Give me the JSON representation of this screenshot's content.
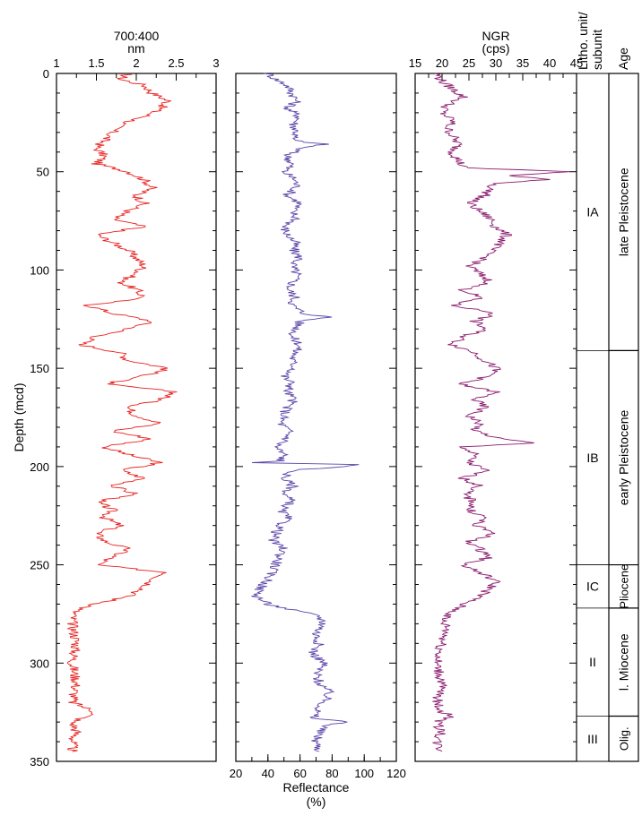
{
  "chart_data": {
    "type": "line",
    "y_axis": {
      "label": "Depth (mcd)",
      "range": [
        0,
        350
      ],
      "ticks": [
        "0",
        "50",
        "100",
        "150",
        "200",
        "250",
        "300",
        "350"
      ]
    },
    "panels": [
      {
        "id": "ratio",
        "axis_position": "top",
        "xlabel_line1": "700:400",
        "xlabel_line2": "nm",
        "xlim": [
          1,
          3
        ],
        "ticks": [
          "1",
          "1.5",
          "2",
          "2.5",
          "3"
        ],
        "color": "#e8211f",
        "series": [
          {
            "depth": [
              0,
              3,
              6,
              10,
              14,
              18,
              22,
              26,
              30,
              34,
              38,
              42,
              46,
              50,
              54,
              58,
              62,
              66,
              70,
              74,
              78,
              82,
              86,
              90,
              94,
              98,
              102,
              106,
              110,
              114,
              118,
              122,
              126,
              130,
              134,
              138,
              142,
              146,
              150,
              154,
              158,
              162,
              166,
              170,
              174,
              178,
              182,
              186,
              190,
              194,
              198,
              202,
              206,
              210,
              214,
              218,
              222,
              226,
              230,
              234,
              238,
              242,
              246,
              250,
              254,
              258,
              262,
              266,
              270,
              273,
              276,
              280,
              290,
              300,
              310,
              320,
              325,
              330,
              335,
              340,
              345
            ],
            "values": [
              1.9,
              1.8,
              2.1,
              2.2,
              2.4,
              2.3,
              2.1,
              1.8,
              1.7,
              1.6,
              1.5,
              1.6,
              1.5,
              1.9,
              2.1,
              2.2,
              2.0,
              2.1,
              1.9,
              1.7,
              2.1,
              1.5,
              1.7,
              1.9,
              2.0,
              2.1,
              2.0,
              1.8,
              2.0,
              2.1,
              1.4,
              1.7,
              2.2,
              1.9,
              1.5,
              1.3,
              1.8,
              1.9,
              2.4,
              2.1,
              1.6,
              2.5,
              2.3,
              1.9,
              2.0,
              2.3,
              1.7,
              2.2,
              1.6,
              1.9,
              2.3,
              1.8,
              2.1,
              1.7,
              2.0,
              1.5,
              1.7,
              1.6,
              1.8,
              1.5,
              1.6,
              1.9,
              1.7,
              1.5,
              2.4,
              2.2,
              2.1,
              1.9,
              1.5,
              1.25,
              1.2,
              1.2,
              1.25,
              1.2,
              1.25,
              1.2,
              1.5,
              1.2,
              1.25,
              1.2,
              1.2
            ]
          }
        ]
      },
      {
        "id": "reflectance",
        "axis_position": "bottom",
        "xlabel_line1": "Reflectance",
        "xlabel_line2": "(%)",
        "xlim": [
          20,
          120
        ],
        "ticks": [
          "20",
          "40",
          "60",
          "80",
          "100",
          "120"
        ],
        "color": "#5a44a8",
        "series": [
          {
            "depth": [
              0,
              3,
              6,
              10,
              14,
              18,
              22,
              26,
              30,
              34,
              36,
              38,
              42,
              46,
              50,
              54,
              58,
              62,
              66,
              70,
              74,
              78,
              82,
              86,
              90,
              94,
              98,
              102,
              106,
              110,
              114,
              118,
              122,
              124,
              126,
              130,
              134,
              138,
              142,
              146,
              150,
              154,
              158,
              162,
              166,
              170,
              174,
              178,
              182,
              186,
              190,
              194,
              197,
              198,
              199,
              202,
              206,
              210,
              214,
              218,
              222,
              226,
              230,
              234,
              238,
              242,
              246,
              250,
              254,
              258,
              262,
              266,
              270,
              273,
              276,
              280,
              285,
              290,
              295,
              300,
              305,
              310,
              315,
              320,
              325,
              328,
              330,
              332,
              335,
              340,
              345
            ],
            "values": [
              40,
              45,
              52,
              55,
              58,
              52,
              60,
              56,
              58,
              55,
              75,
              60,
              52,
              55,
              50,
              57,
              58,
              52,
              60,
              55,
              58,
              50,
              52,
              57,
              56,
              60,
              55,
              58,
              56,
              53,
              57,
              55,
              62,
              78,
              60,
              58,
              55,
              60,
              57,
              55,
              57,
              50,
              55,
              52,
              56,
              52,
              50,
              48,
              53,
              52,
              45,
              50,
              48,
              30,
              100,
              55,
              50,
              56,
              50,
              55,
              48,
              52,
              48,
              45,
              43,
              50,
              47,
              45,
              42,
              40,
              35,
              33,
              40,
              55,
              72,
              75,
              70,
              72,
              68,
              75,
              70,
              72,
              78,
              75,
              70,
              68,
              90,
              75,
              72,
              70,
              72
            ]
          }
        ]
      },
      {
        "id": "ngr",
        "axis_position": "top",
        "xlabel_line1": "NGR",
        "xlabel_line2": "(cps)",
        "xlim": [
          15,
          45
        ],
        "ticks": [
          "15",
          "20",
          "25",
          "30",
          "35",
          "40",
          "45"
        ],
        "color": "#8a1a6e",
        "series": [
          {
            "depth": [
              0,
              4,
              8,
              12,
              16,
              20,
              24,
              28,
              32,
              36,
              40,
              44,
              48,
              50,
              52,
              54,
              56,
              58,
              62,
              66,
              70,
              74,
              78,
              82,
              86,
              90,
              94,
              98,
              102,
              106,
              110,
              114,
              118,
              122,
              126,
              130,
              134,
              138,
              142,
              146,
              150,
              154,
              158,
              162,
              166,
              170,
              174,
              178,
              182,
              186,
              188,
              190,
              194,
              198,
              202,
              206,
              210,
              214,
              218,
              222,
              226,
              230,
              234,
              238,
              242,
              246,
              250,
              254,
              258,
              262,
              266,
              270,
              274,
              278,
              282,
              290,
              300,
              310,
              320,
              325,
              327,
              330,
              335,
              340,
              345
            ],
            "values": [
              19,
              20,
              22,
              24,
              21,
              20,
              22,
              21,
              22,
              23,
              22,
              23,
              24,
              44,
              32,
              40,
              30,
              29,
              28,
              25,
              27,
              29,
              30,
              32,
              31,
              29,
              28,
              25,
              27,
              29,
              24,
              27,
              22,
              30,
              26,
              28,
              24,
              22,
              26,
              28,
              30,
              29,
              23,
              30,
              26,
              28,
              25,
              27,
              26,
              31,
              37,
              24,
              26,
              25,
              28,
              24,
              27,
              24,
              26,
              25,
              28,
              26,
              30,
              25,
              27,
              29,
              24,
              27,
              30,
              29,
              27,
              24,
              22,
              20,
              21,
              20,
              19,
              20,
              19,
              20,
              22,
              19,
              20,
              19,
              20
            ]
          }
        ]
      }
    ],
    "lithology": {
      "header_line1": "Litho. unit/",
      "header_line2": "subunit",
      "units": [
        {
          "label": "IA",
          "top": 0,
          "bottom": 141
        },
        {
          "label": "IB",
          "top": 141,
          "bottom": 250
        },
        {
          "label": "IC",
          "top": 250,
          "bottom": 272
        },
        {
          "label": "II",
          "top": 272,
          "bottom": 327
        },
        {
          "label": "III",
          "top": 327,
          "bottom": 350
        }
      ]
    },
    "age": {
      "header": "Age",
      "units": [
        {
          "label": "late Pleistocene",
          "top": 0,
          "bottom": 141
        },
        {
          "label": "early Pleistocene",
          "top": 141,
          "bottom": 250
        },
        {
          "label": "Pliocene",
          "top": 250,
          "bottom": 272
        },
        {
          "label": "l. Miocene",
          "top": 272,
          "bottom": 327
        },
        {
          "label": "Olig.",
          "top": 327,
          "bottom": 350
        }
      ]
    }
  }
}
